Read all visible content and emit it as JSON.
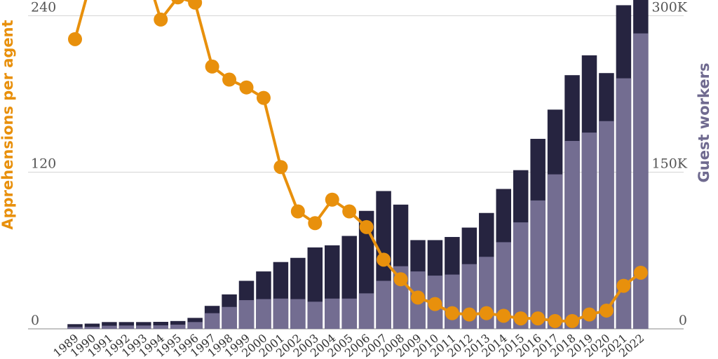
{
  "chart_data": {
    "type": "bar+line",
    "categories": [
      "1989",
      "1990",
      "1991",
      "1992",
      "1993",
      "1994",
      "1995",
      "1996",
      "1997",
      "1998",
      "1999",
      "2000",
      "2001",
      "2002",
      "2003",
      "2004",
      "2005",
      "2006",
      "2007",
      "2008",
      "2009",
      "2010",
      "2011",
      "2012",
      "2013",
      "2014",
      "2015",
      "2016",
      "2017",
      "2018",
      "2019",
      "2020",
      "2021",
      "2022"
    ],
    "left_axis": {
      "label": "Apprehensions per agent",
      "ticks": [
        "0",
        "120",
        "240"
      ],
      "range": [
        0,
        252
      ],
      "color": "#e8900c"
    },
    "right_axis": {
      "label": "Guest workers",
      "ticks": [
        "0",
        "150K",
        "300K"
      ],
      "range": [
        0,
        315000
      ],
      "color": "#6f6a8f"
    },
    "series": [
      {
        "kind": "bar",
        "axis": "right",
        "color": "#736d91",
        "values": [
          1800,
          2000,
          3000,
          3200,
          3200,
          3400,
          4000,
          6500,
          15000,
          21000,
          27500,
          28500,
          29000,
          28500,
          26000,
          29000,
          29000,
          34000,
          46000,
          60000,
          55000,
          51000,
          52000,
          62000,
          69000,
          83000,
          102000,
          123000,
          148000,
          180000,
          188000,
          199000,
          240000,
          283000
        ]
      },
      {
        "kind": "bar",
        "axis": "right",
        "color": "#262440",
        "values": [
          4500,
          5000,
          6500,
          6500,
          6500,
          6700,
          7500,
          10500,
          22000,
          33000,
          46000,
          55000,
          64000,
          68000,
          78000,
          80000,
          89000,
          113000,
          132000,
          119000,
          85000,
          85000,
          88000,
          97000,
          111000,
          134000,
          152000,
          182000,
          210000,
          243000,
          262000,
          245000,
          310000,
          340000
        ],
        "note": "stacked total"
      },
      {
        "kind": "line",
        "axis": "left",
        "color": "#e8900c",
        "values": [
          222,
          270,
          300,
          290,
          280,
          237,
          254,
          250,
          201,
          191,
          185,
          177,
          124,
          90,
          81,
          99,
          90,
          78,
          53,
          38,
          24,
          19,
          12,
          11,
          12,
          10,
          8,
          8,
          6,
          6,
          11,
          14,
          33,
          43
        ]
      }
    ],
    "grid": "horizontal"
  }
}
